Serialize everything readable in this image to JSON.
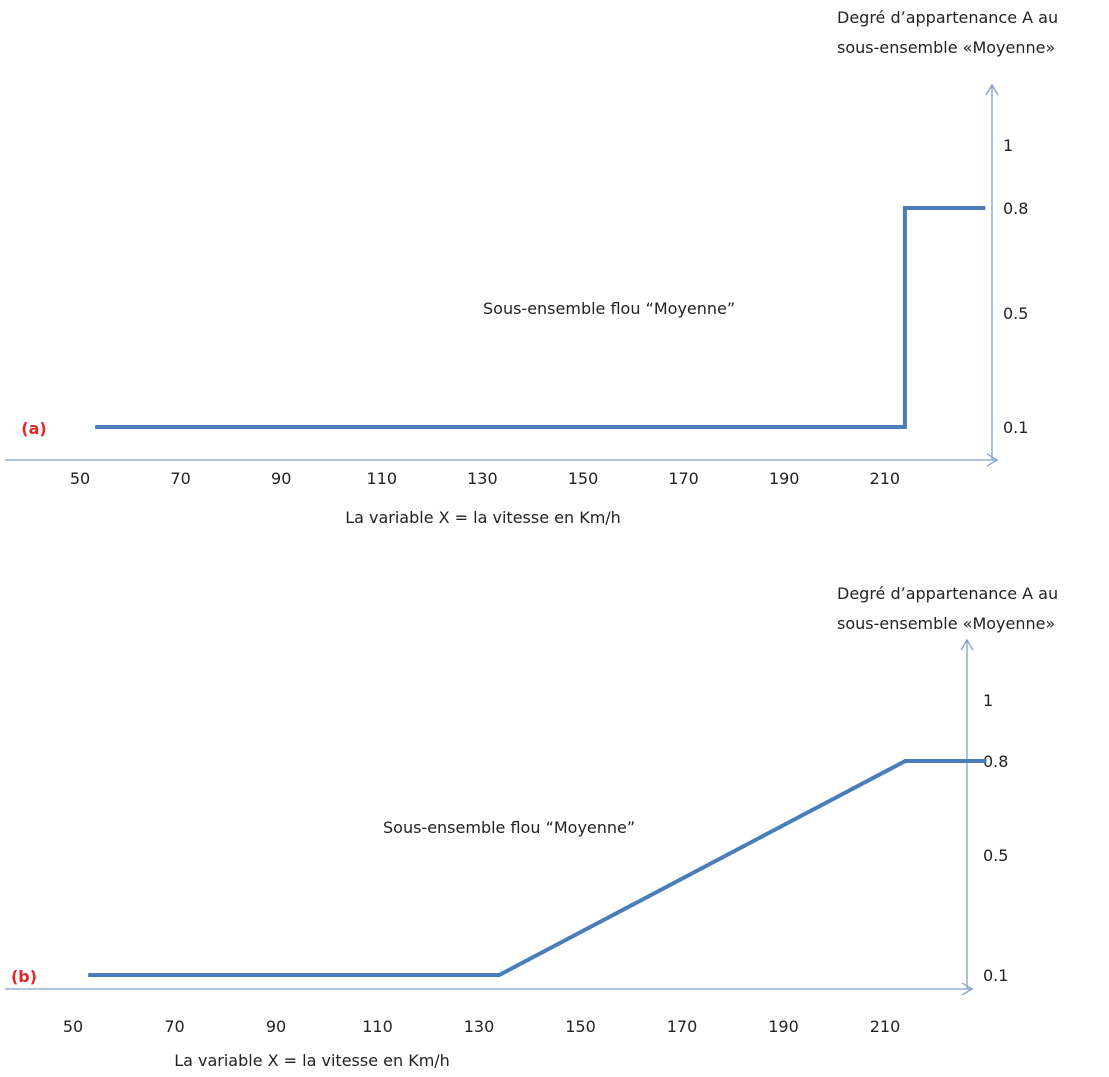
{
  "chart_data": [
    {
      "type": "line",
      "panel_label": "(a)",
      "annotation": "Sous-ensemble flou “Moyenne”",
      "xlabel": "La variable X = la vitesse en Km/h",
      "ylabel": "Degré d’appartenance A au sous-ensemble «Moyenne»",
      "ylabel_lines": [
        "Degré d’appartenance A au",
        "sous-ensemble «Moyenne»"
      ],
      "x_ticks": [
        "50",
        "70",
        "90",
        "110",
        "130",
        "150",
        "170",
        "190",
        "210"
      ],
      "y_ticks": [
        "0.1",
        "0.5",
        "0.8",
        "1"
      ],
      "xlim": [
        50,
        230
      ],
      "series": [
        {
          "x": [
            53,
            214,
            214,
            230
          ],
          "y": [
            0.1,
            0.1,
            0.8,
            0.8
          ]
        }
      ]
    },
    {
      "type": "line",
      "panel_label": "(b)",
      "annotation": "Sous-ensemble flou “Moyenne”",
      "xlabel": "La variable X = la vitesse en Km/h",
      "ylabel": "Degré d’appartenance A au sous-ensemble «Moyenne»",
      "ylabel_lines": [
        "Degré d’appartenance A au",
        "sous-ensemble «Moyenne»"
      ],
      "x_ticks": [
        "50",
        "70",
        "90",
        "110",
        "130",
        "150",
        "170",
        "190",
        "210"
      ],
      "y_ticks": [
        "0.1",
        "0.5",
        "0.8",
        "1"
      ],
      "xlim": [
        50,
        230
      ],
      "series": [
        {
          "x": [
            53,
            134,
            214,
            230
          ],
          "y": [
            0.1,
            0.1,
            0.8,
            0.8
          ]
        }
      ]
    }
  ],
  "colors": {
    "axis": "#7f9fcf",
    "line": "#4a7ebb",
    "panel_label": "#e8262a",
    "text": "#222222"
  }
}
